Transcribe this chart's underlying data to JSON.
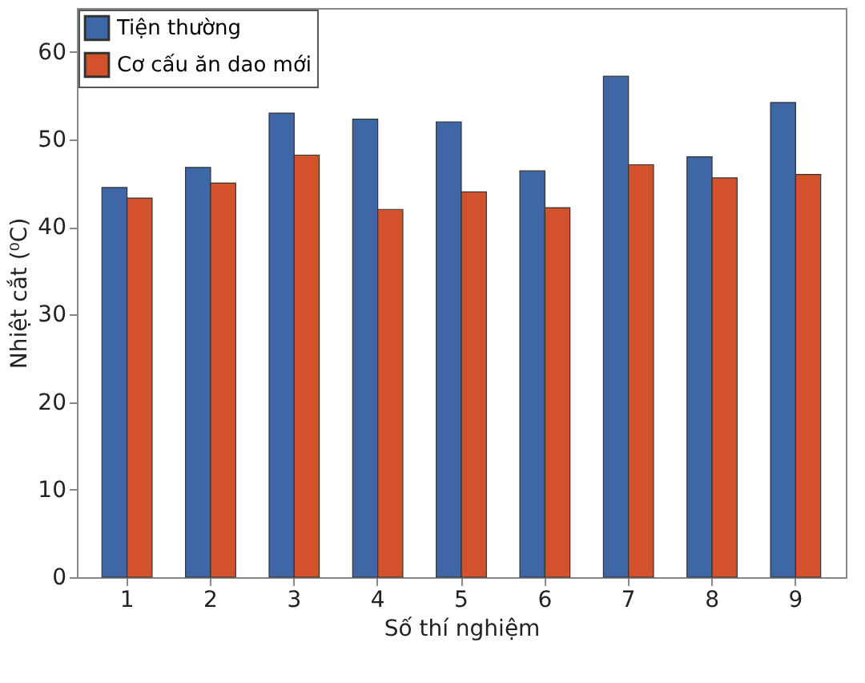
{
  "chart_data": {
    "type": "bar",
    "xlabel": "Số thí nghiệm",
    "ylabel": "Nhiệt cắt (⁰C)",
    "categories": [
      "1",
      "2",
      "3",
      "4",
      "5",
      "6",
      "7",
      "8",
      "9"
    ],
    "series": [
      {
        "name": "Tiện thường",
        "color": "#3f66a6",
        "values": [
          44.5,
          46.8,
          53,
          52.3,
          52,
          46.4,
          57.2,
          48,
          54.2
        ]
      },
      {
        "name": "Cơ cấu ăn dao mới",
        "color": "#d2532b",
        "values": [
          43.3,
          45,
          48.2,
          42,
          44,
          42.2,
          47.1,
          45.6,
          46
        ]
      }
    ],
    "ylim": [
      0,
      65
    ],
    "yticks": [
      0,
      10,
      20,
      30,
      40,
      50,
      60
    ],
    "grid": false,
    "legend": "top left"
  }
}
